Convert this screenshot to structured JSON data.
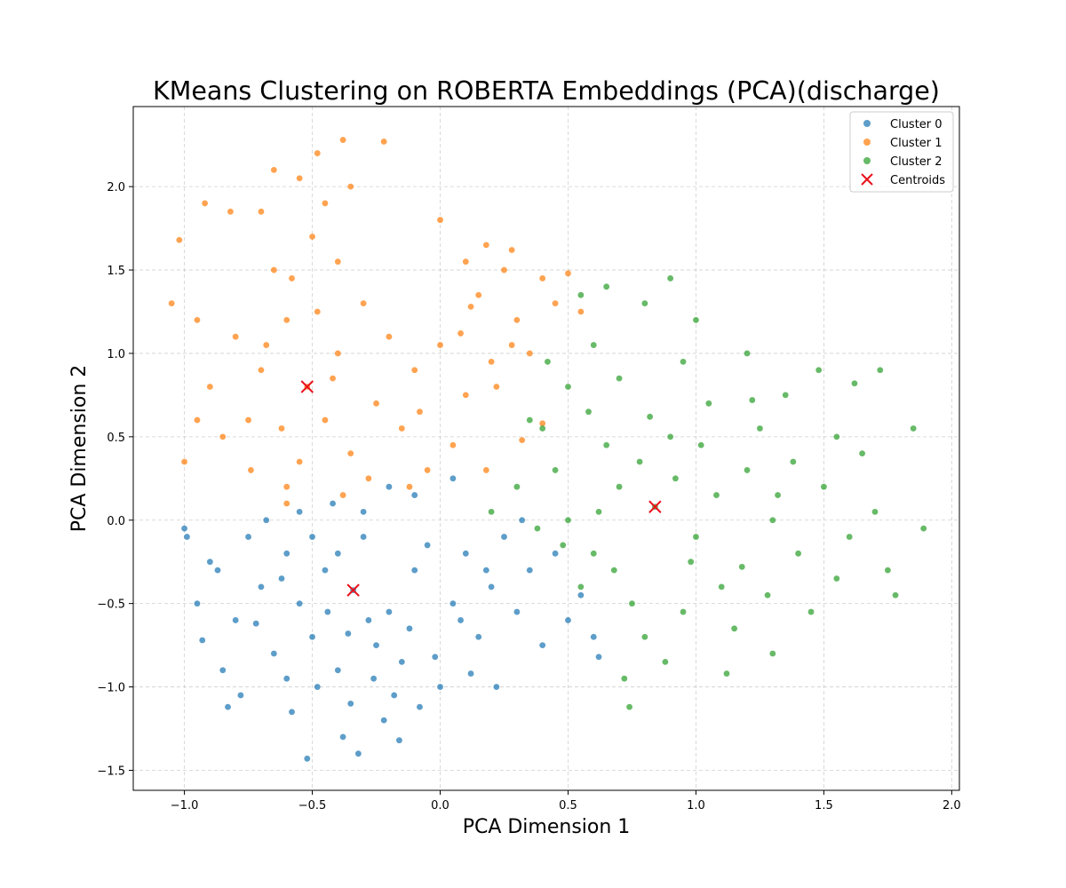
{
  "chart_data": {
    "type": "scatter",
    "title": "KMeans Clustering on ROBERTA Embeddings (PCA)(discharge)",
    "xlabel": "PCA Dimension 1",
    "ylabel": "PCA Dimension 2",
    "xlim": [
      -1.2,
      2.03
    ],
    "ylim": [
      -1.62,
      2.48
    ],
    "grid": true,
    "legend_position": "top-right",
    "xticks": [
      {
        "value": -1.0,
        "label": "−1.0"
      },
      {
        "value": -0.5,
        "label": "−0.5"
      },
      {
        "value": 0.0,
        "label": "0.0"
      },
      {
        "value": 0.5,
        "label": "0.5"
      },
      {
        "value": 1.0,
        "label": "1.0"
      },
      {
        "value": 1.5,
        "label": "1.5"
      },
      {
        "value": 2.0,
        "label": "2.0"
      }
    ],
    "yticks": [
      {
        "value": -1.5,
        "label": "−1.5"
      },
      {
        "value": -1.0,
        "label": "−1.0"
      },
      {
        "value": -0.5,
        "label": "−0.5"
      },
      {
        "value": 0.0,
        "label": "0.0"
      },
      {
        "value": 0.5,
        "label": "0.5"
      },
      {
        "value": 1.0,
        "label": "1.0"
      },
      {
        "value": 1.5,
        "label": "1.5"
      },
      {
        "value": 2.0,
        "label": "2.0"
      }
    ],
    "series": [
      {
        "name": "Cluster 0",
        "color": "#1f77b4",
        "points": [
          [
            -0.34,
            -0.42
          ],
          [
            -0.45,
            -0.3
          ],
          [
            -0.2,
            -0.55
          ],
          [
            -0.5,
            -0.7
          ],
          [
            -0.3,
            -0.1
          ],
          [
            -0.6,
            -0.2
          ],
          [
            -0.1,
            -0.3
          ],
          [
            -0.4,
            -0.9
          ],
          [
            -0.25,
            -0.75
          ],
          [
            -0.55,
            -0.5
          ],
          [
            -0.05,
            -0.15
          ],
          [
            -0.7,
            -0.4
          ],
          [
            -0.35,
            -1.1
          ],
          [
            0.05,
            -0.5
          ],
          [
            -0.65,
            -0.8
          ],
          [
            -0.15,
            -0.85
          ],
          [
            -0.48,
            -1.0
          ],
          [
            0.1,
            -0.2
          ],
          [
            -0.75,
            -0.1
          ],
          [
            -0.3,
            0.05
          ],
          [
            0.2,
            -0.4
          ],
          [
            -0.8,
            -0.6
          ],
          [
            0.15,
            -0.7
          ],
          [
            -0.58,
            -1.15
          ],
          [
            -0.22,
            -1.2
          ],
          [
            0.25,
            -0.1
          ],
          [
            -0.9,
            -0.25
          ],
          [
            -0.42,
            0.1
          ],
          [
            0.3,
            -0.55
          ],
          [
            -0.85,
            -0.9
          ],
          [
            -0.1,
            0.15
          ],
          [
            0.0,
            -1.0
          ],
          [
            -0.68,
            0.0
          ],
          [
            0.35,
            -0.3
          ],
          [
            -0.38,
            -1.3
          ],
          [
            -0.95,
            -0.5
          ],
          [
            0.4,
            -0.75
          ],
          [
            -0.78,
            -1.05
          ],
          [
            -0.18,
            -1.05
          ],
          [
            0.45,
            -0.2
          ],
          [
            -1.0,
            -0.05
          ],
          [
            -0.52,
            -1.43
          ],
          [
            -0.32,
            -1.4
          ],
          [
            -0.16,
            -1.32
          ],
          [
            -0.83,
            -1.12
          ],
          [
            -0.93,
            -0.72
          ],
          [
            0.55,
            -0.45
          ],
          [
            0.6,
            -0.7
          ],
          [
            0.05,
            0.25
          ],
          [
            -0.62,
            -0.35
          ],
          [
            -0.28,
            -0.6
          ],
          [
            -0.12,
            -0.65
          ],
          [
            -0.44,
            -0.55
          ],
          [
            -0.02,
            -0.82
          ],
          [
            -0.72,
            -0.62
          ],
          [
            0.12,
            -0.92
          ],
          [
            -0.55,
            0.05
          ],
          [
            -0.2,
            0.2
          ],
          [
            0.32,
            0.0
          ],
          [
            -0.87,
            -0.3
          ],
          [
            0.5,
            -0.6
          ],
          [
            -0.08,
            -1.12
          ],
          [
            -0.99,
            -0.1
          ],
          [
            0.22,
            -1.0
          ],
          [
            0.62,
            -0.82
          ],
          [
            -0.4,
            -0.2
          ],
          [
            -0.26,
            -0.95
          ],
          [
            -0.6,
            -0.95
          ],
          [
            0.08,
            -0.6
          ],
          [
            -0.36,
            -0.68
          ],
          [
            0.18,
            -0.3
          ],
          [
            -0.5,
            -0.1
          ]
        ]
      },
      {
        "name": "Cluster 1",
        "color": "#ff7f0e",
        "points": [
          [
            -0.52,
            0.8
          ],
          [
            -0.6,
            1.2
          ],
          [
            -0.45,
            0.6
          ],
          [
            -0.7,
            0.9
          ],
          [
            -0.55,
            0.35
          ],
          [
            -0.4,
            1.0
          ],
          [
            -0.65,
            1.5
          ],
          [
            -0.5,
            1.7
          ],
          [
            -0.35,
            0.4
          ],
          [
            -0.75,
            0.6
          ],
          [
            -0.6,
            0.2
          ],
          [
            -0.3,
            1.3
          ],
          [
            -0.8,
            1.1
          ],
          [
            -0.45,
            1.9
          ],
          [
            -0.7,
            1.85
          ],
          [
            -0.25,
            0.7
          ],
          [
            -0.55,
            2.05
          ],
          [
            -0.85,
            0.5
          ],
          [
            -0.4,
            1.55
          ],
          [
            -0.2,
            1.1
          ],
          [
            -0.6,
            0.1
          ],
          [
            -0.65,
            2.1
          ],
          [
            -0.35,
            2.0
          ],
          [
            -0.9,
            0.8
          ],
          [
            -0.15,
            0.55
          ],
          [
            -0.1,
            0.9
          ],
          [
            0.0,
            1.05
          ],
          [
            0.1,
            0.75
          ],
          [
            0.2,
            0.95
          ],
          [
            0.3,
            1.2
          ],
          [
            0.25,
            1.5
          ],
          [
            0.15,
            1.35
          ],
          [
            0.05,
            0.45
          ],
          [
            -0.05,
            0.3
          ],
          [
            0.35,
            1.0
          ],
          [
            0.4,
            1.45
          ],
          [
            0.18,
            1.65
          ],
          [
            0.28,
            1.62
          ],
          [
            0.45,
            1.3
          ],
          [
            0.0,
            1.8
          ],
          [
            0.12,
            1.28
          ],
          [
            -0.08,
            0.65
          ],
          [
            0.22,
            0.8
          ],
          [
            0.08,
            1.12
          ],
          [
            -0.95,
            1.2
          ],
          [
            -1.05,
            1.3
          ],
          [
            -1.0,
            0.35
          ],
          [
            -0.95,
            0.6
          ],
          [
            -0.92,
            1.9
          ],
          [
            -0.82,
            1.85
          ],
          [
            -0.38,
            2.28
          ],
          [
            -0.22,
            2.27
          ],
          [
            -0.48,
            2.2
          ],
          [
            -1.02,
            1.68
          ],
          [
            0.55,
            1.25
          ],
          [
            0.5,
            1.48
          ],
          [
            0.32,
            0.48
          ],
          [
            0.4,
            0.58
          ],
          [
            -0.28,
            0.25
          ],
          [
            -0.12,
            0.2
          ],
          [
            0.18,
            0.3
          ],
          [
            -0.74,
            0.3
          ],
          [
            -0.58,
            1.45
          ],
          [
            -0.48,
            1.25
          ],
          [
            -0.68,
            1.05
          ],
          [
            -0.42,
            0.85
          ],
          [
            -0.62,
            0.55
          ],
          [
            -0.38,
            0.15
          ],
          [
            0.28,
            1.05
          ],
          [
            0.1,
            1.55
          ]
        ]
      },
      {
        "name": "Cluster 2",
        "color": "#2ca02c",
        "points": [
          [
            0.84,
            0.08
          ],
          [
            0.7,
            0.2
          ],
          [
            1.0,
            -0.1
          ],
          [
            0.6,
            -0.2
          ],
          [
            1.2,
            0.3
          ],
          [
            0.9,
            0.5
          ],
          [
            0.5,
            0.0
          ],
          [
            1.1,
            -0.4
          ],
          [
            0.75,
            -0.5
          ],
          [
            1.3,
            0.0
          ],
          [
            0.65,
            0.45
          ],
          [
            1.05,
            0.7
          ],
          [
            0.45,
            0.3
          ],
          [
            1.4,
            -0.2
          ],
          [
            0.8,
            -0.7
          ],
          [
            1.25,
            0.55
          ],
          [
            0.55,
            -0.4
          ],
          [
            0.95,
            0.95
          ],
          [
            1.5,
            0.2
          ],
          [
            0.4,
            0.55
          ],
          [
            1.15,
            -0.65
          ],
          [
            0.7,
            0.85
          ],
          [
            1.35,
            0.75
          ],
          [
            0.3,
            0.2
          ],
          [
            1.6,
            -0.1
          ],
          [
            0.88,
            -0.85
          ],
          [
            1.45,
            -0.55
          ],
          [
            0.6,
            1.05
          ],
          [
            1.2,
            1.0
          ],
          [
            0.35,
            0.6
          ],
          [
            1.7,
            0.05
          ],
          [
            1.0,
            1.2
          ],
          [
            0.72,
            -0.95
          ],
          [
            1.55,
            0.5
          ],
          [
            0.5,
            0.8
          ],
          [
            1.3,
            -0.8
          ],
          [
            1.75,
            -0.3
          ],
          [
            0.9,
            1.45
          ],
          [
            0.8,
            1.3
          ],
          [
            1.65,
            0.4
          ],
          [
            0.2,
            0.05
          ],
          [
            1.85,
            0.55
          ],
          [
            1.89,
            -0.05
          ],
          [
            1.78,
            -0.45
          ],
          [
            0.74,
            -1.12
          ],
          [
            1.12,
            -0.92
          ],
          [
            1.72,
            0.9
          ],
          [
            1.62,
            0.82
          ],
          [
            0.55,
            1.35
          ],
          [
            0.65,
            1.4
          ],
          [
            0.98,
            -0.25
          ],
          [
            0.78,
            0.35
          ],
          [
            1.08,
            0.15
          ],
          [
            0.62,
            0.05
          ],
          [
            1.18,
            -0.28
          ],
          [
            0.92,
            0.25
          ],
          [
            1.38,
            0.35
          ],
          [
            0.48,
            -0.15
          ],
          [
            1.02,
            0.45
          ],
          [
            0.68,
            -0.3
          ],
          [
            1.28,
            -0.45
          ],
          [
            0.58,
            0.65
          ],
          [
            1.48,
            0.9
          ],
          [
            0.42,
            0.95
          ],
          [
            0.82,
            0.62
          ],
          [
            1.22,
            0.72
          ],
          [
            0.95,
            -0.55
          ],
          [
            1.55,
            -0.35
          ],
          [
            0.38,
            -0.05
          ],
          [
            1.32,
            0.15
          ]
        ]
      }
    ],
    "centroids": {
      "name": "Centroids",
      "color": "#e8121b",
      "points": [
        [
          -0.34,
          -0.42
        ],
        [
          -0.52,
          0.8
        ],
        [
          0.84,
          0.08
        ]
      ]
    }
  }
}
